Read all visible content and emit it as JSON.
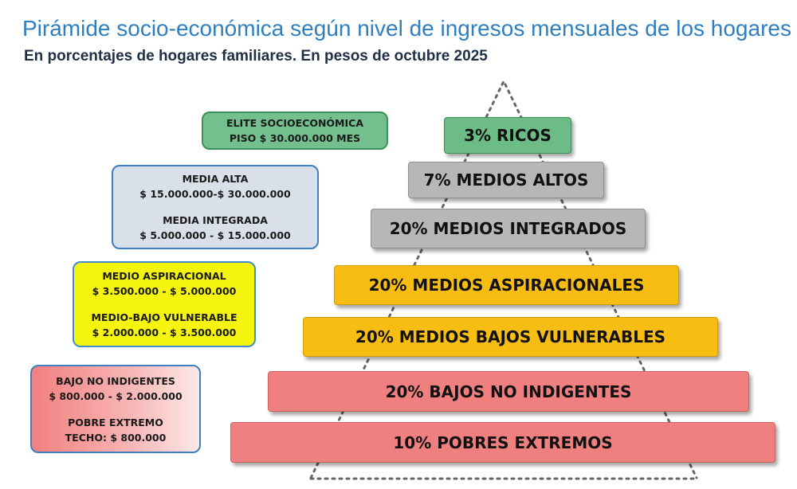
{
  "header": {
    "title": "Pirámide socio-económica según nivel de ingresos mensuales de los hogares",
    "subtitle": "En porcentajes de hogares familiares. En pesos de octubre 2025"
  },
  "pyramid": [
    {
      "label": "3%  RICOS",
      "color": "#6dbb86"
    },
    {
      "label": "7%  MEDIOS ALTOS",
      "color": "#b7b7b7"
    },
    {
      "label": "20%  MEDIOS INTEGRADOS",
      "color": "#b7b7b7"
    },
    {
      "label": "20%  MEDIOS ASPIRACIONALES",
      "color": "#f7bd13"
    },
    {
      "label": "20%  MEDIOS BAJOS VULNERABLES",
      "color": "#f7bd13"
    },
    {
      "label": "20%  BAJOS NO INDIGENTES",
      "color": "#f08080"
    },
    {
      "label": "10%  POBRES EXTREMOS",
      "color": "#f08080"
    }
  ],
  "legend": {
    "elite": {
      "line1": "ELITE SOCIOECONÓMICA",
      "line2": "PISO $ 30.000.000 MES"
    },
    "media_alta": {
      "line1": "MEDIA ALTA",
      "line2": "$ 15.000.000-$ 30.000.000"
    },
    "media_integrada": {
      "line1": "MEDIA INTEGRADA",
      "line2": "$ 5.000.000 - $ 15.000.000"
    },
    "medio_aspiracional": {
      "line1": "MEDIO ASPIRACIONAL",
      "line2": "$ 3.500.000 - $ 5.000.000"
    },
    "medio_bajo": {
      "line1": "MEDIO-BAJO VULNERABLE",
      "line2": "$ 2.000.000 - $ 3.500.000"
    },
    "bajo_no_indigentes": {
      "line1": "BAJO NO INDIGENTES",
      "line2": "$ 800.000 - $ 2.000.000"
    },
    "pobre_extremo": {
      "line1": "POBRE EXTREMO",
      "line2": "TECHO: $ 800.000"
    }
  }
}
